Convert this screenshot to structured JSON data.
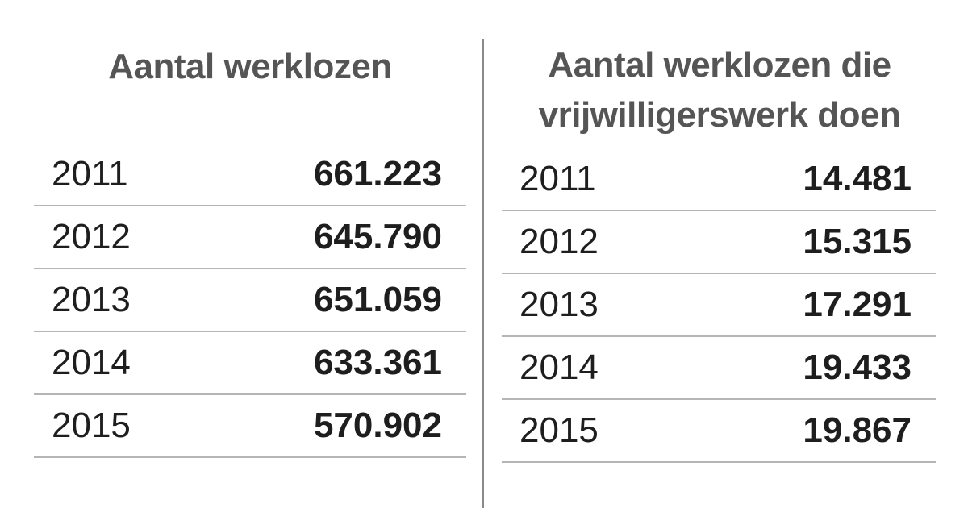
{
  "left": {
    "title": "Aantal werklozen",
    "rows": [
      [
        "2011",
        "661.223"
      ],
      [
        "2012",
        "645.790"
      ],
      [
        "2013",
        "651.059"
      ],
      [
        "2014",
        "633.361"
      ],
      [
        "2015",
        "570.902"
      ]
    ]
  },
  "right": {
    "title": "Aantal werklozen die vrijwilligerswerk doen",
    "rows": [
      [
        "2011",
        "14.481"
      ],
      [
        "2012",
        "15.315"
      ],
      [
        "2013",
        "17.291"
      ],
      [
        "2014",
        "19.433"
      ],
      [
        "2015",
        "19.867"
      ]
    ]
  }
}
